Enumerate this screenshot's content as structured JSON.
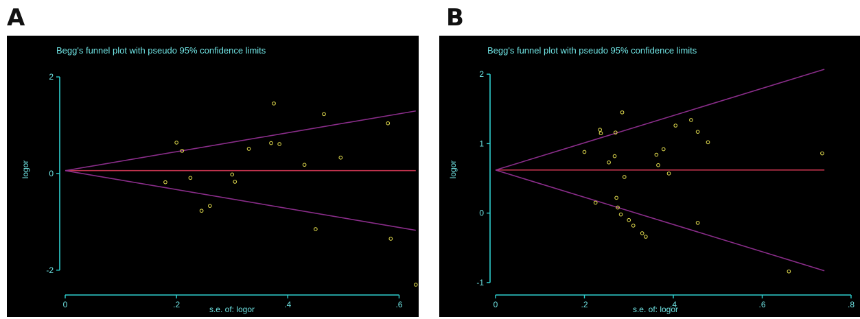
{
  "panel_labels": [
    "A",
    "B"
  ],
  "chart_data": [
    {
      "type": "scatter",
      "title": "Begg's funnel plot with pseudo 95% confidence limits",
      "xlabel": "s.e. of: logor",
      "ylabel": "logor",
      "xlim": [
        0,
        0.65
      ],
      "ylim": [
        -2.4,
        2.2
      ],
      "xticks": [
        0,
        0.2,
        0.4,
        0.6
      ],
      "xtick_labels": [
        "0",
        ".2",
        ".4",
        ".6"
      ],
      "yticks": [
        -2,
        0,
        2
      ],
      "ytick_labels": [
        "-2",
        "0",
        "2"
      ],
      "pooled_estimate": 0.06,
      "limit_slope": 1.96,
      "limit_x_range": [
        0,
        0.63
      ],
      "points": [
        {
          "x": 0.18,
          "y": -0.18
        },
        {
          "x": 0.2,
          "y": 0.64
        },
        {
          "x": 0.21,
          "y": 0.47
        },
        {
          "x": 0.225,
          "y": -0.09
        },
        {
          "x": 0.245,
          "y": -0.77
        },
        {
          "x": 0.26,
          "y": -0.67
        },
        {
          "x": 0.3,
          "y": -0.02
        },
        {
          "x": 0.305,
          "y": -0.17
        },
        {
          "x": 0.33,
          "y": 0.51
        },
        {
          "x": 0.37,
          "y": 0.63
        },
        {
          "x": 0.375,
          "y": 1.45
        },
        {
          "x": 0.385,
          "y": 0.61
        },
        {
          "x": 0.43,
          "y": 0.18
        },
        {
          "x": 0.45,
          "y": -1.15
        },
        {
          "x": 0.465,
          "y": 1.23
        },
        {
          "x": 0.495,
          "y": 0.33
        },
        {
          "x": 0.58,
          "y": 1.04
        },
        {
          "x": 0.585,
          "y": -1.35
        },
        {
          "x": 0.63,
          "y": -2.3
        }
      ],
      "colors": {
        "background": "#000000",
        "axis": "#2fd0d0",
        "title": "#6fe3e3",
        "pooled_line": "#c0334d",
        "limit_lines": "#8a2d8a",
        "points": "#d8d24a"
      }
    },
    {
      "type": "scatter",
      "title": "Begg's funnel plot with pseudo 95% confidence limits",
      "xlabel": "s.e. of: logor",
      "ylabel": "logor",
      "xlim": [
        0,
        0.8
      ],
      "ylim": [
        -1.1,
        2.1
      ],
      "xticks": [
        0,
        0.2,
        0.4,
        0.6,
        0.8
      ],
      "xtick_labels": [
        "0",
        ".2",
        ".4",
        ".6",
        ".8"
      ],
      "yticks": [
        -1,
        0,
        1,
        2
      ],
      "ytick_labels": [
        "-1",
        "0",
        "1",
        "2"
      ],
      "pooled_estimate": 0.62,
      "limit_slope": 1.96,
      "limit_x_range": [
        0,
        0.74
      ],
      "points": [
        {
          "x": 0.2,
          "y": 0.88
        },
        {
          "x": 0.225,
          "y": 0.15
        },
        {
          "x": 0.235,
          "y": 1.2
        },
        {
          "x": 0.237,
          "y": 1.15
        },
        {
          "x": 0.255,
          "y": 0.73
        },
        {
          "x": 0.268,
          "y": 0.82
        },
        {
          "x": 0.27,
          "y": 1.16
        },
        {
          "x": 0.272,
          "y": 0.22
        },
        {
          "x": 0.275,
          "y": 0.08
        },
        {
          "x": 0.282,
          "y": -0.02
        },
        {
          "x": 0.285,
          "y": 1.45
        },
        {
          "x": 0.29,
          "y": 0.52
        },
        {
          "x": 0.3,
          "y": -0.1
        },
        {
          "x": 0.31,
          "y": -0.18
        },
        {
          "x": 0.33,
          "y": -0.29
        },
        {
          "x": 0.338,
          "y": -0.34
        },
        {
          "x": 0.362,
          "y": 0.84
        },
        {
          "x": 0.366,
          "y": 0.69
        },
        {
          "x": 0.378,
          "y": 0.92
        },
        {
          "x": 0.39,
          "y": 0.57
        },
        {
          "x": 0.405,
          "y": 1.26
        },
        {
          "x": 0.44,
          "y": 1.34
        },
        {
          "x": 0.455,
          "y": 1.17
        },
        {
          "x": 0.455,
          "y": -0.14
        },
        {
          "x": 0.478,
          "y": 1.02
        },
        {
          "x": 0.66,
          "y": -0.84
        },
        {
          "x": 0.735,
          "y": 0.86
        }
      ],
      "colors": {
        "background": "#000000",
        "axis": "#2fd0d0",
        "title": "#6fe3e3",
        "pooled_line": "#c0334d",
        "limit_lines": "#8a2d8a",
        "points": "#d8d24a"
      }
    }
  ]
}
